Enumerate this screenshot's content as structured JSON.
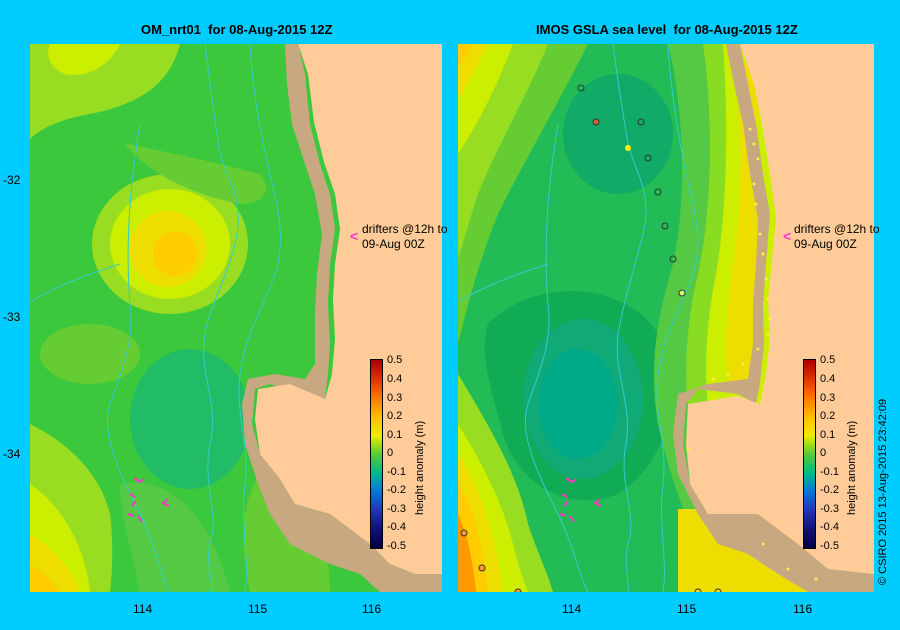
{
  "left_panel": {
    "title": "OM_nrt01  for 08-Aug-2015 12Z"
  },
  "right_panel": {
    "title": "IMOS GSLA sea level  for 08-Aug-2015 12Z"
  },
  "x_ticks": [
    "114",
    "115",
    "116"
  ],
  "y_ticks": [
    "-32",
    "-33",
    "-34"
  ],
  "drifters_note": "drifters @12h to\n09-Aug 00Z",
  "colorbar": {
    "title": "height anomaly (m)",
    "ticks": [
      "0.5",
      "0.4",
      "0.3",
      "0.2",
      "0.1",
      "0",
      "-0.1",
      "-0.2",
      "-0.3",
      "-0.4",
      "-0.5"
    ]
  },
  "copyright": "© CSIRO 2015   13-Aug-2015 23:42:09",
  "colors": {
    "frame": "#00ccff",
    "land": "#ffcc99",
    "shelf": "#c8a880",
    "drifter": "#ff33cc"
  },
  "chart_data": [
    {
      "type": "heatmap",
      "title": "OM_nrt01  for 08-Aug-2015 12Z",
      "xlim": [
        113,
        116.6
      ],
      "ylim": [
        -35,
        -31
      ],
      "colorbar_range": [
        -0.5,
        0.5
      ],
      "xlabel": "",
      "ylabel": ""
    },
    {
      "type": "heatmap",
      "title": "IMOS GSLA sea level  for 08-Aug-2015 12Z",
      "xlim": [
        113,
        116.6
      ],
      "ylim": [
        -35,
        -31
      ],
      "colorbar_range": [
        -0.5,
        0.5
      ],
      "xlabel": "",
      "ylabel": ""
    }
  ]
}
